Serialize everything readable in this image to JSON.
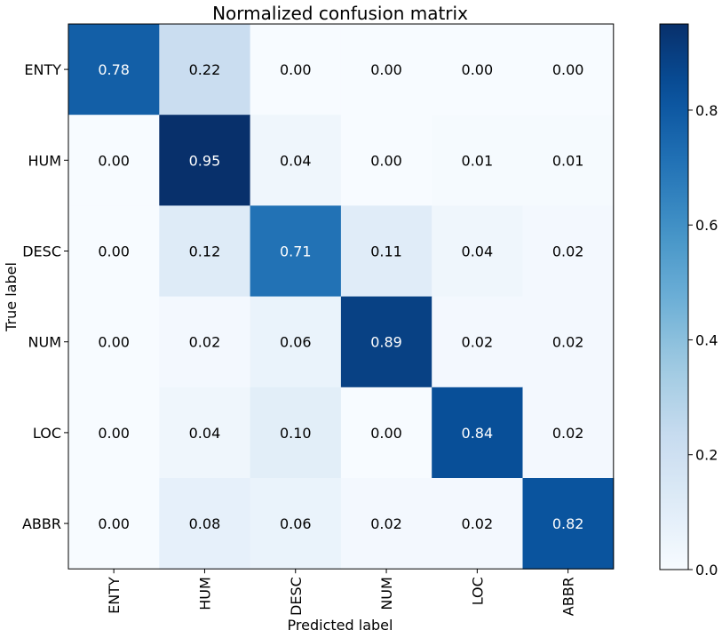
{
  "chart_data": {
    "type": "heatmap",
    "title": "Normalized confusion matrix",
    "xlabel": "Predicted label",
    "ylabel": "True label",
    "x_categories": [
      "ENTY",
      "HUM",
      "DESC",
      "NUM",
      "LOC",
      "ABBR"
    ],
    "y_categories": [
      "ENTY",
      "HUM",
      "DESC",
      "NUM",
      "LOC",
      "ABBR"
    ],
    "values": [
      [
        0.78,
        0.22,
        0.0,
        0.0,
        0.0,
        0.0
      ],
      [
        0.0,
        0.95,
        0.04,
        0.0,
        0.01,
        0.01
      ],
      [
        0.0,
        0.12,
        0.71,
        0.11,
        0.04,
        0.02
      ],
      [
        0.0,
        0.02,
        0.06,
        0.89,
        0.02,
        0.02
      ],
      [
        0.0,
        0.04,
        0.1,
        0.0,
        0.84,
        0.02
      ],
      [
        0.0,
        0.08,
        0.06,
        0.02,
        0.02,
        0.82
      ]
    ],
    "value_labels": [
      [
        "0.78",
        "0.22",
        "0.00",
        "0.00",
        "0.00",
        "0.00"
      ],
      [
        "0.00",
        "0.95",
        "0.04",
        "0.00",
        "0.01",
        "0.01"
      ],
      [
        "0.00",
        "0.12",
        "0.71",
        "0.11",
        "0.04",
        "0.02"
      ],
      [
        "0.00",
        "0.02",
        "0.06",
        "0.89",
        "0.02",
        "0.02"
      ],
      [
        "0.00",
        "0.04",
        "0.10",
        "0.00",
        "0.84",
        "0.02"
      ],
      [
        "0.00",
        "0.08",
        "0.06",
        "0.02",
        "0.02",
        "0.82"
      ]
    ],
    "colormap": "Blues",
    "value_range": [
      0.0,
      0.95
    ],
    "colorbar_ticks": [
      0.0,
      0.2,
      0.4,
      0.6,
      0.8
    ],
    "colorbar_tick_labels": [
      "0.0",
      "0.2",
      "0.4",
      "0.6",
      "0.8"
    ],
    "grid": false,
    "text_color_dark": "#000000",
    "text_color_light": "#ffffff"
  }
}
